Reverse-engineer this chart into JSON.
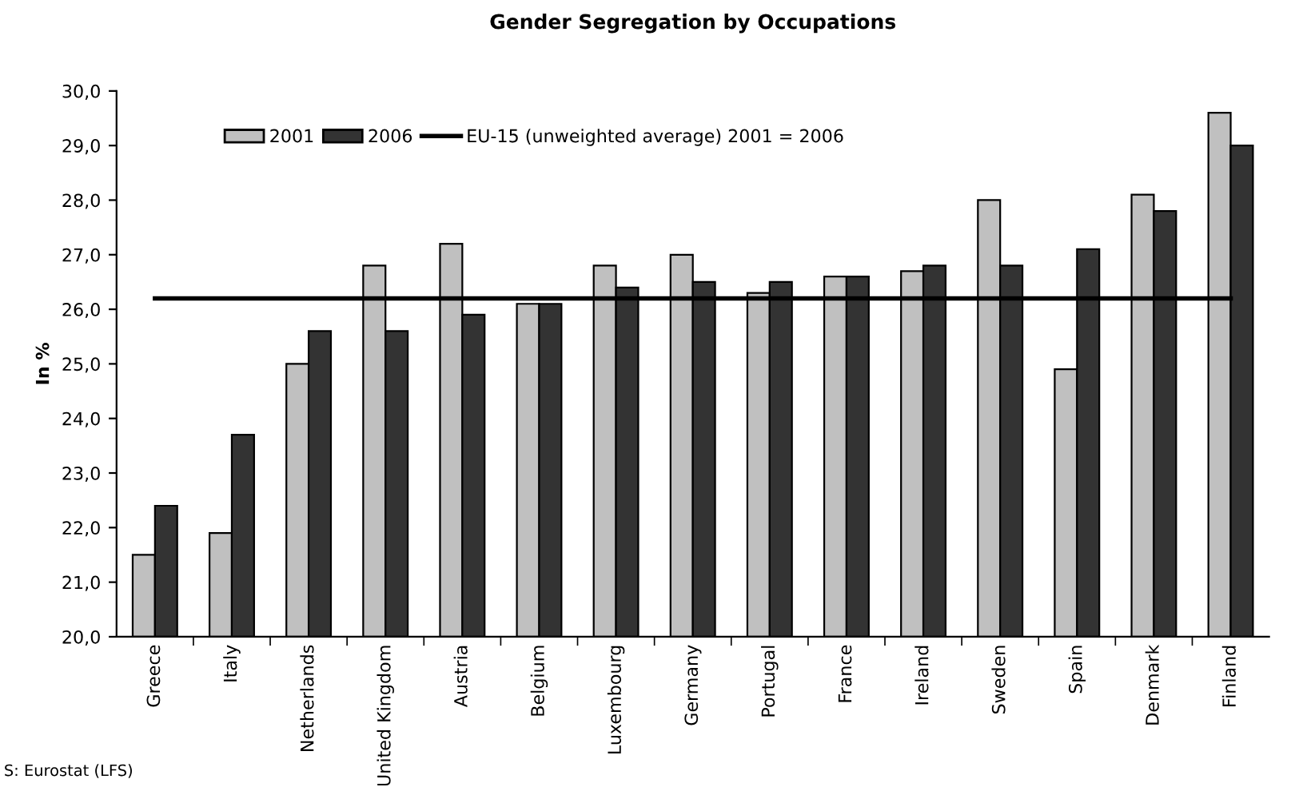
{
  "chart_data": {
    "type": "bar",
    "title": "Gender Segregation by Occupations",
    "ylabel": "In %",
    "categories": [
      "Greece",
      "Italy",
      "Netherlands",
      "United Kingdom",
      "Austria",
      "Belgium",
      "Luxembourg",
      "Germany",
      "Portugal",
      "France",
      "Ireland",
      "Sweden",
      "Spain",
      "Denmark",
      "Finland"
    ],
    "series": [
      {
        "name": "2001",
        "color": "#c0c0c0",
        "values": [
          21.5,
          21.9,
          25.0,
          26.8,
          27.2,
          26.1,
          26.8,
          27.0,
          26.3,
          26.6,
          26.7,
          28.0,
          24.9,
          28.1,
          29.6
        ]
      },
      {
        "name": "2006",
        "color": "#333333",
        "values": [
          22.4,
          23.7,
          25.6,
          25.6,
          25.9,
          26.1,
          26.4,
          26.5,
          26.5,
          26.6,
          26.8,
          26.8,
          27.1,
          27.8,
          29.0
        ]
      },
      {
        "name": "EU-15 (unweighted average) 2001 = 2006",
        "type": "line",
        "color": "#000000",
        "values": [
          26.2,
          26.2,
          26.2,
          26.2,
          26.2,
          26.2,
          26.2,
          26.2,
          26.2,
          26.2,
          26.2,
          26.2,
          26.2,
          26.2,
          26.2
        ]
      }
    ],
    "ylim": [
      20,
      30
    ],
    "yticks": [
      {
        "value": 20,
        "label": "20,0"
      },
      {
        "value": 21,
        "label": "21,0"
      },
      {
        "value": 22,
        "label": "22,0"
      },
      {
        "value": 23,
        "label": "23,0"
      },
      {
        "value": 24,
        "label": "24,0"
      },
      {
        "value": 25,
        "label": "25,0"
      },
      {
        "value": 26,
        "label": "26,0"
      },
      {
        "value": 27,
        "label": "27,0"
      },
      {
        "value": 28,
        "label": "28,0"
      },
      {
        "value": 29,
        "label": "29,0"
      },
      {
        "value": 30,
        "label": "30,0"
      }
    ],
    "legend": "top left",
    "grid": false,
    "annotations": [
      "S: Eurostat (LFS)"
    ]
  }
}
